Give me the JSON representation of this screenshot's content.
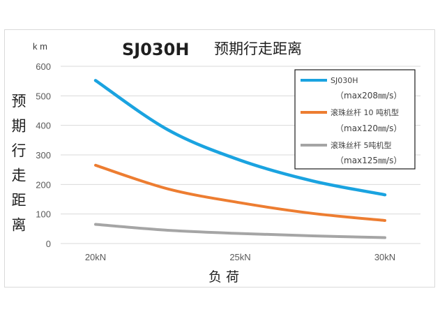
{
  "chart_data": {
    "type": "line",
    "title": "SJ030H",
    "subtitle": "预期行走距离",
    "unit_label": "k m",
    "ylabel": "预期行走距离",
    "xlabel": "负 荷",
    "ylim": [
      0,
      600
    ],
    "yticks": [
      0,
      100,
      200,
      300,
      400,
      500,
      600
    ],
    "xticks": [
      "20kN",
      "25kN",
      "30kN"
    ],
    "xlim": [
      20,
      30
    ],
    "grid": true,
    "legend_position": "top-right",
    "series": [
      {
        "name": "SJ030H",
        "detail": "（max208㎜/s）",
        "color": "#1aa3e0",
        "x": [
          20,
          22.5,
          25,
          27.5,
          30
        ],
        "values": [
          552,
          385,
          282,
          212,
          165
        ]
      },
      {
        "name": "滚珠丝杆 10 吨机型",
        "detail": "（max120㎜/s）",
        "color": "#ed7d31",
        "x": [
          20,
          22.5,
          25,
          27.5,
          30
        ],
        "values": [
          265,
          185,
          138,
          102,
          78
        ]
      },
      {
        "name": "滚珠丝杆 5吨机型",
        "detail": "（max125㎜/s）",
        "color": "#a5a5a5",
        "x": [
          20,
          22.5,
          25,
          27.5,
          30
        ],
        "values": [
          65,
          45,
          34,
          26,
          20
        ]
      }
    ]
  }
}
